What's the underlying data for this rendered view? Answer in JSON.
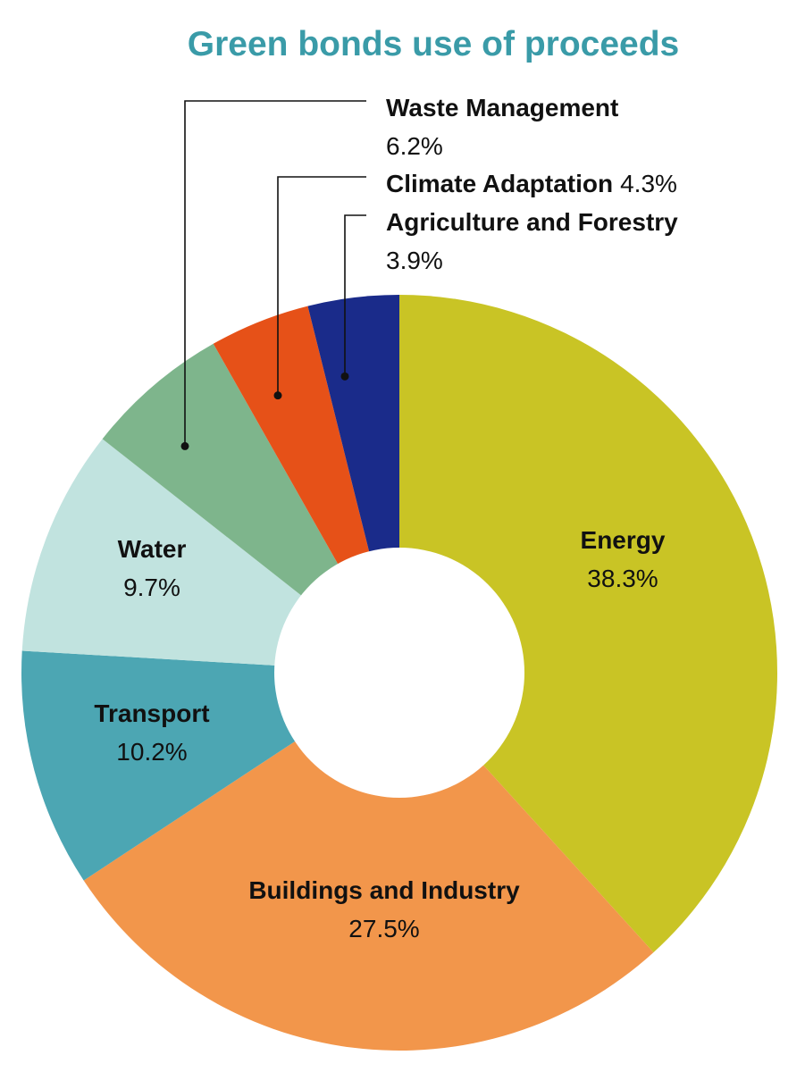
{
  "chart_data": {
    "type": "pie",
    "title": "Green bonds use of proceeds",
    "donut": true,
    "start": "12 o'clock, clockwise",
    "colors": {
      "title": "#3A9BA8",
      "leader_line": "#111111"
    },
    "slices": [
      {
        "name": "Energy",
        "value": 38.3,
        "label": "38.3%",
        "color": "#C9C425"
      },
      {
        "name": "Buildings and Industry",
        "value": 27.5,
        "label": "27.5%",
        "color": "#F2964B"
      },
      {
        "name": "Transport",
        "value": 10.2,
        "label": "10.2%",
        "color": "#4CA6B3"
      },
      {
        "name": "Water",
        "value": 9.7,
        "label": "9.7%",
        "color": "#C1E3DF"
      },
      {
        "name": "Waste Management",
        "value": 6.2,
        "label": "6.2%",
        "color": "#7EB58C"
      },
      {
        "name": "Climate Adaptation",
        "value": 4.3,
        "label": "4.3%",
        "color": "#E65118"
      },
      {
        "name": "Agriculture and Forestry",
        "value": 3.9,
        "label": "3.9%",
        "color": "#1A2B8A"
      }
    ]
  }
}
